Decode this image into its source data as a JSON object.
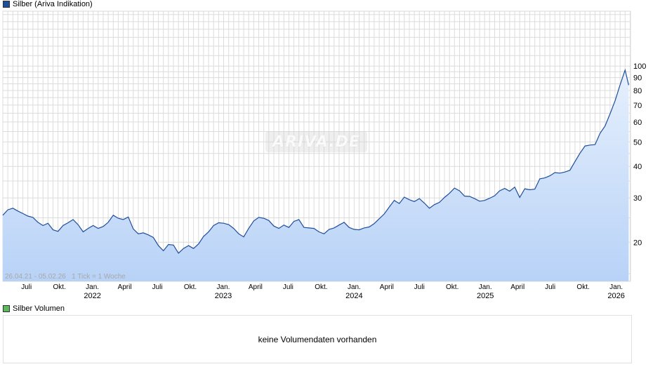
{
  "legend": {
    "price_label": "Silber (Ariva Indikation)",
    "price_color": "#1f4e9b",
    "volume_label": "Silber Volumen",
    "volume_color": "#5cb85c"
  },
  "watermark": "ARIVA.DE",
  "range_note": "26.04.21 - 05.02.26   1 Tick = 1 Woche",
  "volume_panel": {
    "message": "keine Volumendaten vorhanden"
  },
  "chart_data": {
    "type": "area",
    "y_scale": "log",
    "ylim": [
      14,
      165
    ],
    "y_ticks": [
      20,
      30,
      40,
      50,
      60,
      70,
      80,
      90,
      100
    ],
    "grid": true,
    "line_color": "#1f4e9b",
    "fill_color": "#b8d2f7",
    "x_ticks": [
      {
        "date": "2021-07-01",
        "label": "Juli"
      },
      {
        "date": "2021-10-01",
        "label": "Okt."
      },
      {
        "date": "2022-01-01",
        "label": "Jan.",
        "year": "2022"
      },
      {
        "date": "2022-04-01",
        "label": "April"
      },
      {
        "date": "2022-07-01",
        "label": "Juli"
      },
      {
        "date": "2022-10-01",
        "label": "Okt."
      },
      {
        "date": "2023-01-01",
        "label": "Jan.",
        "year": "2023"
      },
      {
        "date": "2023-04-01",
        "label": "April"
      },
      {
        "date": "2023-07-01",
        "label": "Juli"
      },
      {
        "date": "2023-10-01",
        "label": "Okt."
      },
      {
        "date": "2024-01-01",
        "label": "Jan.",
        "year": "2024"
      },
      {
        "date": "2024-04-01",
        "label": "April"
      },
      {
        "date": "2024-07-01",
        "label": "Juli"
      },
      {
        "date": "2024-10-01",
        "label": "Okt."
      },
      {
        "date": "2025-01-01",
        "label": "Jan.",
        "year": "2025"
      },
      {
        "date": "2025-04-01",
        "label": "April"
      },
      {
        "date": "2025-07-01",
        "label": "Juli"
      },
      {
        "date": "2025-10-01",
        "label": "Okt."
      },
      {
        "date": "2026-01-01",
        "label": "Jan.",
        "year": "2026"
      }
    ],
    "series": [
      {
        "x": [
          "2021-04-26",
          "2021-05-10",
          "2021-05-24",
          "2021-06-07",
          "2021-06-21",
          "2021-07-05",
          "2021-07-19",
          "2021-08-02",
          "2021-08-16",
          "2021-08-30",
          "2021-09-13",
          "2021-09-27",
          "2021-10-11",
          "2021-10-25",
          "2021-11-08",
          "2021-11-22",
          "2021-12-06",
          "2021-12-20",
          "2022-01-03",
          "2022-01-17",
          "2022-01-31",
          "2022-02-14",
          "2022-02-28",
          "2022-03-14",
          "2022-03-28",
          "2022-04-11",
          "2022-04-25",
          "2022-05-09",
          "2022-05-23",
          "2022-06-06",
          "2022-06-20",
          "2022-07-04",
          "2022-07-18",
          "2022-08-01",
          "2022-08-15",
          "2022-08-29",
          "2022-09-12",
          "2022-09-26",
          "2022-10-10",
          "2022-10-24",
          "2022-11-07",
          "2022-11-21",
          "2022-12-05",
          "2022-12-19",
          "2023-01-02",
          "2023-01-16",
          "2023-01-30",
          "2023-02-13",
          "2023-02-27",
          "2023-03-13",
          "2023-03-27",
          "2023-04-10",
          "2023-04-24",
          "2023-05-08",
          "2023-05-22",
          "2023-06-05",
          "2023-06-19",
          "2023-07-03",
          "2023-07-17",
          "2023-07-31",
          "2023-08-14",
          "2023-08-28",
          "2023-09-11",
          "2023-09-25",
          "2023-10-09",
          "2023-10-23",
          "2023-11-06",
          "2023-11-20",
          "2023-12-04",
          "2023-12-18",
          "2024-01-01",
          "2024-01-15",
          "2024-01-29",
          "2024-02-12",
          "2024-02-26",
          "2024-03-11",
          "2024-03-25",
          "2024-04-08",
          "2024-04-22",
          "2024-05-06",
          "2024-05-20",
          "2024-06-03",
          "2024-06-17",
          "2024-07-01",
          "2024-07-15",
          "2024-07-29",
          "2024-08-12",
          "2024-08-26",
          "2024-09-09",
          "2024-09-23",
          "2024-10-07",
          "2024-10-21",
          "2024-11-04",
          "2024-11-18",
          "2024-12-02",
          "2024-12-16",
          "2024-12-30",
          "2025-01-13",
          "2025-01-27",
          "2025-02-10",
          "2025-02-24",
          "2025-03-10",
          "2025-03-24",
          "2025-04-07",
          "2025-04-21",
          "2025-05-05",
          "2025-05-19",
          "2025-06-02",
          "2025-06-16",
          "2025-06-30",
          "2025-07-14",
          "2025-07-28",
          "2025-08-11",
          "2025-08-25",
          "2025-09-08",
          "2025-09-22",
          "2025-10-06",
          "2025-10-20",
          "2025-11-03",
          "2025-11-17",
          "2025-12-01",
          "2025-12-15",
          "2025-12-29",
          "2026-01-12",
          "2026-01-26",
          "2026-02-05"
        ],
        "values": [
          25.6,
          26.9,
          27.3,
          26.6,
          26.0,
          25.4,
          25.1,
          24.0,
          23.3,
          23.8,
          22.4,
          22.1,
          23.3,
          23.9,
          24.6,
          23.5,
          22.0,
          22.7,
          23.3,
          22.7,
          23.1,
          24.0,
          25.6,
          24.9,
          24.6,
          25.2,
          22.6,
          21.6,
          21.8,
          21.4,
          20.9,
          19.4,
          18.5,
          19.6,
          19.5,
          18.1,
          18.9,
          19.4,
          18.9,
          19.7,
          21.1,
          22.0,
          23.3,
          23.9,
          23.8,
          23.5,
          22.7,
          21.6,
          21.0,
          22.7,
          24.3,
          25.1,
          24.9,
          24.4,
          23.2,
          22.7,
          23.4,
          22.9,
          24.2,
          24.6,
          22.9,
          22.8,
          22.7,
          22.0,
          21.6,
          22.5,
          22.8,
          23.4,
          24.0,
          22.9,
          22.5,
          22.4,
          22.8,
          23.0,
          23.7,
          24.8,
          25.9,
          27.6,
          29.3,
          28.5,
          30.2,
          29.5,
          29.0,
          29.8,
          28.6,
          27.3,
          28.2,
          28.8,
          30.1,
          31.3,
          32.8,
          32.0,
          30.5,
          30.4,
          29.8,
          29.1,
          29.3,
          29.9,
          30.6,
          32.0,
          32.7,
          31.9,
          33.1,
          30.1,
          32.6,
          32.3,
          32.5,
          35.7,
          36.0,
          36.7,
          37.8,
          37.6,
          38.0,
          38.6,
          41.8,
          45.1,
          48.2,
          48.6,
          48.8,
          54.1,
          57.8,
          64.7,
          72.8,
          84.3,
          96.4,
          84.0
        ]
      }
    ]
  }
}
